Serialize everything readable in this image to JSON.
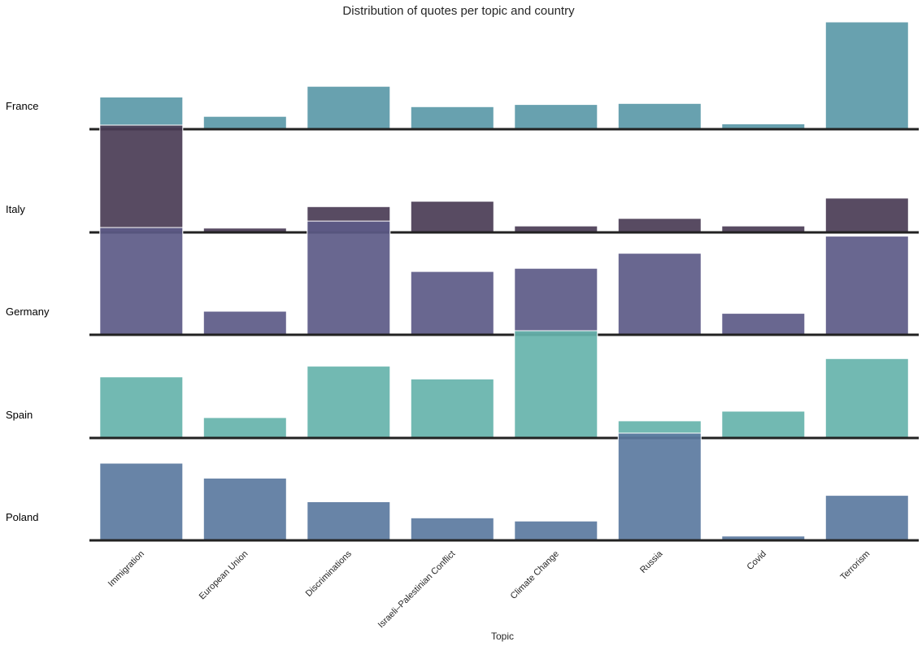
{
  "chart_data": {
    "type": "bar",
    "title": "Distribution of quotes per topic and country",
    "xlabel": "Topic",
    "ylabel": "",
    "categories": [
      "Immigration",
      "European Union",
      "Discriminations",
      "Israeli–Palestinian Conflict",
      "Climate Change",
      "Russia",
      "Covid",
      "Terrorism"
    ],
    "series": [
      {
        "name": "France",
        "color": "#5b99a8",
        "values": [
          0.3,
          0.12,
          0.4,
          0.21,
          0.23,
          0.24,
          0.05,
          1.0
        ]
      },
      {
        "name": "Italy",
        "color": "#4a3c55",
        "values": [
          1.0,
          0.04,
          0.24,
          0.29,
          0.06,
          0.13,
          0.06,
          0.32
        ]
      },
      {
        "name": "Germany",
        "color": "#5c5a87",
        "values": [
          1.0,
          0.22,
          1.06,
          0.59,
          0.62,
          0.76,
          0.2,
          0.92
        ]
      },
      {
        "name": "Spain",
        "color": "#66b3ab",
        "values": [
          0.57,
          0.19,
          0.67,
          0.55,
          1.0,
          0.16,
          0.25,
          0.74
        ]
      },
      {
        "name": "Poland",
        "color": "#5b7aa0",
        "values": [
          0.72,
          0.58,
          0.36,
          0.21,
          0.18,
          1.0,
          0.04,
          0.42
        ]
      }
    ],
    "grid": false,
    "legend": "none"
  }
}
